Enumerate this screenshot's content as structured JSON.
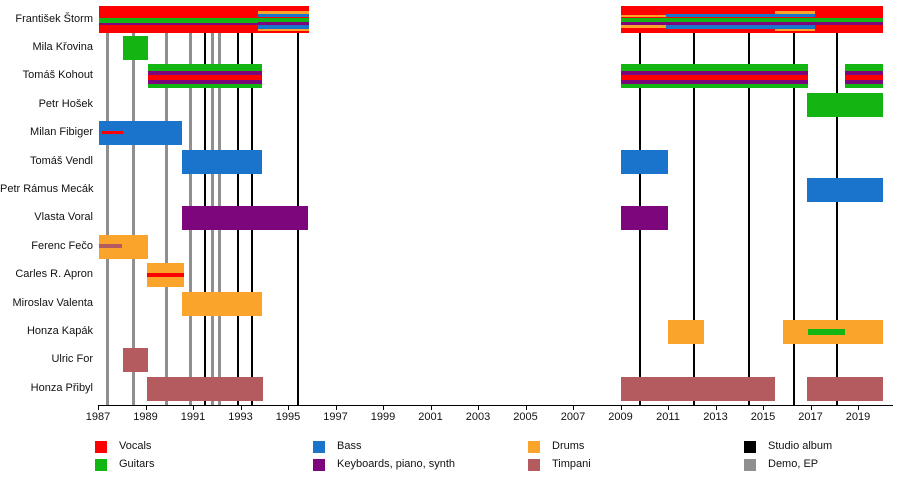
{
  "chart_data": {
    "type": "timeline",
    "description": "Band member timeline chart",
    "x_axis": {
      "start_year": 1987,
      "end_year": 2020.5,
      "tick_years": [
        1987,
        1989,
        1991,
        1993,
        1995,
        1997,
        1999,
        2001,
        2003,
        2005,
        2007,
        2009,
        2011,
        2013,
        2015,
        2017,
        2019
      ]
    },
    "palette": {
      "vocals": "#ff0000",
      "guitars": "#13b513",
      "bass": "#1b74cc",
      "keyboards": "#7d067d",
      "drums": "#fba42b",
      "timpani": "#b35b5e",
      "studio_album": "#000000",
      "demo_ep": "#8f8f8f"
    },
    "members": [
      {
        "name": "František Štorm",
        "bars": [
          {
            "start": 1987.05,
            "end": 1993.75,
            "color": "vocals",
            "stripes": [
              {
                "color": "guitars",
                "top": 0.44,
                "height": 0.18
              },
              {
                "color": "keyboards",
                "top": 0.62,
                "height": 0.1
              }
            ]
          },
          {
            "start": 1993.75,
            "end": 1995.9,
            "color": "vocals",
            "stripes": [
              {
                "color": "drums",
                "top": 0.2,
                "height": 0.08
              },
              {
                "color": "bass",
                "top": 0.28,
                "height": 0.14
              },
              {
                "color": "guitars",
                "top": 0.44,
                "height": 0.16
              },
              {
                "color": "keyboards",
                "top": 0.6,
                "height": 0.1
              },
              {
                "color": "bass",
                "top": 0.7,
                "height": 0.14
              },
              {
                "color": "drums",
                "top": 0.84,
                "height": 0.08
              }
            ]
          },
          {
            "start": 2009.0,
            "end": 2020.05,
            "color": "vocals",
            "stripes": [
              {
                "color": "guitars",
                "top": 0.44,
                "height": 0.16
              },
              {
                "color": "keyboards",
                "top": 0.6,
                "height": 0.1
              },
              {
                "color": "drums",
                "start": 2009.0,
                "end": 2010.9,
                "top": 0.32,
                "height": 0.1
              },
              {
                "color": "drums",
                "start": 2009.0,
                "end": 2010.9,
                "top": 0.71,
                "height": 0.1
              },
              {
                "color": "bass",
                "start": 2010.9,
                "end": 2017.2,
                "top": 0.28,
                "height": 0.14
              },
              {
                "color": "bass",
                "start": 2010.9,
                "end": 2017.2,
                "top": 0.7,
                "height": 0.14
              },
              {
                "color": "drums",
                "start": 2015.5,
                "end": 2017.2,
                "top": 0.2,
                "height": 0.08
              },
              {
                "color": "drums",
                "start": 2015.5,
                "end": 2017.2,
                "top": 0.84,
                "height": 0.08
              }
            ]
          }
        ]
      },
      {
        "name": "Mila Křovina",
        "bars": [
          {
            "start": 1988.05,
            "end": 1989.1,
            "color": "guitars"
          }
        ]
      },
      {
        "name": "Tomáš Kohout",
        "bars": [
          {
            "start": 1989.1,
            "end": 1993.9,
            "color": "guitars",
            "stripes": [
              {
                "color": "keyboards",
                "top": 0.28,
                "height": 0.16
              },
              {
                "color": "vocals",
                "top": 0.44,
                "height": 0.22
              },
              {
                "color": "keyboards",
                "top": 0.66,
                "height": 0.16
              }
            ]
          },
          {
            "start": 2009.0,
            "end": 2016.9,
            "color": "guitars",
            "stripes": [
              {
                "color": "keyboards",
                "top": 0.28,
                "height": 0.16
              },
              {
                "color": "vocals",
                "top": 0.44,
                "height": 0.22
              },
              {
                "color": "keyboards",
                "top": 0.66,
                "height": 0.16
              }
            ]
          },
          {
            "start": 2018.45,
            "end": 2020.05,
            "color": "guitars",
            "stripes": [
              {
                "color": "keyboards",
                "top": 0.28,
                "height": 0.16
              },
              {
                "color": "vocals",
                "top": 0.44,
                "height": 0.22
              },
              {
                "color": "keyboards",
                "top": 0.66,
                "height": 0.16
              }
            ]
          }
        ]
      },
      {
        "name": "Petr Hošek",
        "bars": [
          {
            "start": 2016.85,
            "end": 2020.05,
            "color": "guitars"
          }
        ]
      },
      {
        "name": "Milan Fibiger",
        "bars": [
          {
            "start": 1987.05,
            "end": 1990.55,
            "color": "bass",
            "stripes": [
              {
                "color": "vocals",
                "start": 1987.15,
                "end": 1988.05,
                "top": 0.4,
                "height": 0.15
              }
            ]
          }
        ]
      },
      {
        "name": "Tomáš Vendl",
        "bars": [
          {
            "start": 1990.55,
            "end": 1993.9,
            "color": "bass"
          },
          {
            "start": 2009.0,
            "end": 2011.0,
            "color": "bass"
          }
        ]
      },
      {
        "name": "Petr Rámus Mecák",
        "bars": [
          {
            "start": 2016.85,
            "end": 2020.05,
            "color": "bass"
          }
        ]
      },
      {
        "name": "Vlasta Voral",
        "bars": [
          {
            "start": 1990.55,
            "end": 1995.85,
            "color": "keyboards"
          },
          {
            "start": 2009.0,
            "end": 2011.0,
            "color": "keyboards"
          }
        ]
      },
      {
        "name": "Ferenc Fečo",
        "bars": [
          {
            "start": 1987.05,
            "end": 1989.1,
            "color": "drums",
            "stripes": [
              {
                "color": "timpani",
                "start": 1987.05,
                "end": 1988.0,
                "top": 0.38,
                "height": 0.16
              }
            ]
          }
        ]
      },
      {
        "name": "Carles R. Apron",
        "bars": [
          {
            "start": 1989.05,
            "end": 1990.6,
            "color": "drums",
            "stripes": [
              {
                "color": "vocals",
                "top": 0.42,
                "height": 0.17
              }
            ]
          }
        ]
      },
      {
        "name": "Miroslav Valenta",
        "bars": [
          {
            "start": 1990.55,
            "end": 1993.9,
            "color": "drums"
          }
        ]
      },
      {
        "name": "Honza Kapák",
        "bars": [
          {
            "start": 2011.0,
            "end": 2012.5,
            "color": "drums"
          },
          {
            "start": 2015.85,
            "end": 2020.05,
            "color": "drums",
            "stripes": [
              {
                "color": "guitars",
                "start": 2016.9,
                "end": 2018.45,
                "top": 0.38,
                "height": 0.24
              }
            ]
          }
        ]
      },
      {
        "name": "Ulric For",
        "bars": [
          {
            "start": 1988.05,
            "end": 1989.1,
            "color": "timpani"
          }
        ]
      },
      {
        "name": "Honza Přibyl",
        "bars": [
          {
            "start": 1989.05,
            "end": 1993.95,
            "color": "timpani"
          },
          {
            "start": 2009.0,
            "end": 2015.5,
            "color": "timpani"
          },
          {
            "start": 2016.85,
            "end": 2020.05,
            "color": "timpani"
          }
        ]
      }
    ],
    "events": {
      "studio_albums": [
        1991.5,
        1992.9,
        1993.5,
        1995.4,
        2009.8,
        2012.1,
        2014.4,
        2016.3,
        2018.1
      ],
      "demos_eps": [
        1987.4,
        1988.5,
        1989.9,
        1990.9,
        1991.8,
        1992.1
      ]
    },
    "legend": [
      {
        "label": "Vocals",
        "color": "vocals"
      },
      {
        "label": "Guitars",
        "color": "guitars"
      },
      {
        "label": "Bass",
        "color": "bass"
      },
      {
        "label": "Keyboards, piano, synth",
        "color": "keyboards"
      },
      {
        "label": "Drums",
        "color": "drums"
      },
      {
        "label": "Timpani",
        "color": "timpani"
      },
      {
        "label": "Studio album",
        "color": "studio_album"
      },
      {
        "label": "Demo, EP",
        "color": "demo_ep"
      }
    ]
  }
}
